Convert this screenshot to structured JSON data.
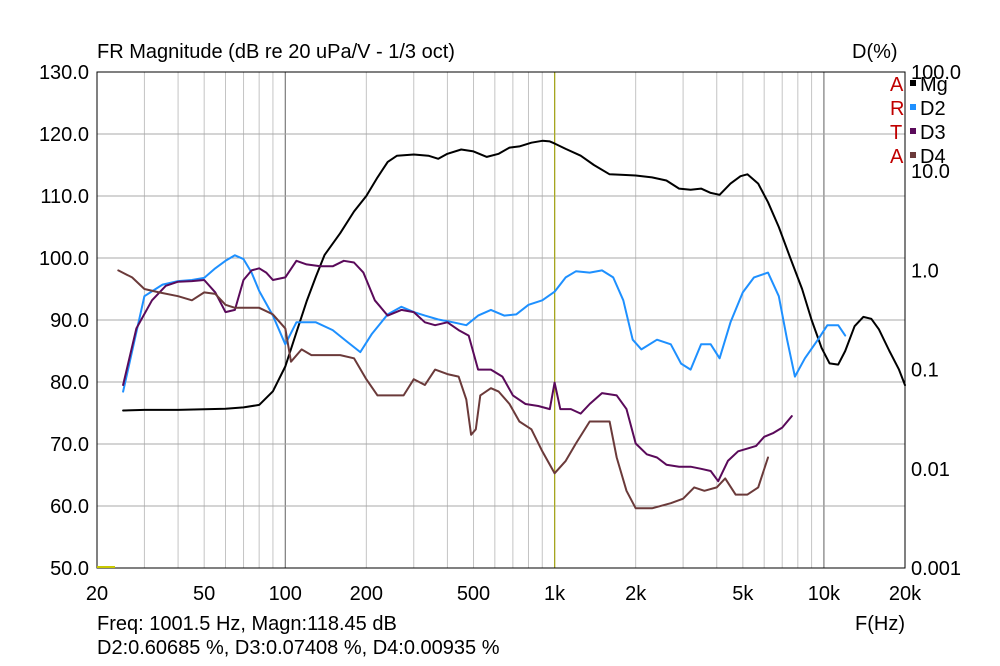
{
  "chart_data": {
    "type": "line",
    "title": "FR Magnitude (dB re 20 uPa/V - 1/3 oct)",
    "right_axis_title": "D(%)",
    "xlabel": "F(Hz)",
    "x_scale": "log",
    "xlim": [
      20,
      20000
    ],
    "x_ticks": [
      {
        "value": 20,
        "label": "20"
      },
      {
        "value": 50,
        "label": "50"
      },
      {
        "value": 100,
        "label": "100"
      },
      {
        "value": 200,
        "label": "200"
      },
      {
        "value": 500,
        "label": "500"
      },
      {
        "value": 1000,
        "label": "1k"
      },
      {
        "value": 2000,
        "label": "2k"
      },
      {
        "value": 5000,
        "label": "5k"
      },
      {
        "value": 10000,
        "label": "10k"
      },
      {
        "value": 20000,
        "label": "20k"
      }
    ],
    "ylim": [
      50,
      130
    ],
    "y_ticks": [
      {
        "value": 50,
        "label": "50.0"
      },
      {
        "value": 60,
        "label": "60.0"
      },
      {
        "value": 70,
        "label": "70.0"
      },
      {
        "value": 80,
        "label": "80.0"
      },
      {
        "value": 90,
        "label": "90.0"
      },
      {
        "value": 100,
        "label": "100.0"
      },
      {
        "value": 110,
        "label": "110.0"
      },
      {
        "value": 120,
        "label": "120.0"
      },
      {
        "value": 130,
        "label": "130.0"
      }
    ],
    "right_axis_scale": "log",
    "right_ylim": [
      0.001,
      100
    ],
    "right_ticks": [
      {
        "value": 100,
        "label": "100.0"
      },
      {
        "value": 10,
        "label": "10.0"
      },
      {
        "value": 1,
        "label": "1.0"
      },
      {
        "value": 0.1,
        "label": "0.1"
      },
      {
        "value": 0.01,
        "label": "0.01"
      },
      {
        "value": 0.001,
        "label": "0.001"
      }
    ],
    "grid": true,
    "cursor_x": 1001.5,
    "legend_position": "top-right",
    "watermark_letters": [
      "A",
      "R",
      "T",
      "A"
    ],
    "series": [
      {
        "name": "Mg",
        "color": "#000000",
        "axis": "left",
        "points": [
          [
            25,
            75.4
          ],
          [
            30,
            75.5
          ],
          [
            40,
            75.5
          ],
          [
            50,
            75.6
          ],
          [
            60,
            75.7
          ],
          [
            70,
            75.9
          ],
          [
            80,
            76.3
          ],
          [
            90,
            78.5
          ],
          [
            100,
            82.5
          ],
          [
            110,
            88
          ],
          [
            120,
            93
          ],
          [
            130,
            97
          ],
          [
            140,
            100.5
          ],
          [
            160,
            104
          ],
          [
            180,
            107.5
          ],
          [
            200,
            110
          ],
          [
            220,
            113
          ],
          [
            240,
            115.5
          ],
          [
            260,
            116.5
          ],
          [
            300,
            116.7
          ],
          [
            340,
            116.5
          ],
          [
            370,
            116
          ],
          [
            400,
            116.8
          ],
          [
            450,
            117.5
          ],
          [
            500,
            117.2
          ],
          [
            560,
            116.3
          ],
          [
            620,
            116.8
          ],
          [
            680,
            117.8
          ],
          [
            740,
            118
          ],
          [
            820,
            118.6
          ],
          [
            900,
            118.9
          ],
          [
            960,
            118.8
          ],
          [
            1001.5,
            118.45
          ],
          [
            1100,
            117.6
          ],
          [
            1250,
            116.5
          ],
          [
            1400,
            115
          ],
          [
            1600,
            113.5
          ],
          [
            1800,
            113.4
          ],
          [
            2000,
            113.3
          ],
          [
            2300,
            113
          ],
          [
            2600,
            112.5
          ],
          [
            2900,
            111.2
          ],
          [
            3200,
            111
          ],
          [
            3500,
            111.2
          ],
          [
            3800,
            110.5
          ],
          [
            4100,
            110.2
          ],
          [
            4500,
            112
          ],
          [
            4900,
            113.2
          ],
          [
            5200,
            113.5
          ],
          [
            5700,
            112
          ],
          [
            6200,
            109
          ],
          [
            6800,
            105
          ],
          [
            7500,
            100
          ],
          [
            8300,
            95
          ],
          [
            9000,
            90
          ],
          [
            9800,
            85.5
          ],
          [
            10500,
            83
          ],
          [
            11300,
            82.8
          ],
          [
            12000,
            85
          ],
          [
            13000,
            89
          ],
          [
            14000,
            90.5
          ],
          [
            15000,
            90.2
          ],
          [
            16000,
            88.5
          ],
          [
            17500,
            85
          ],
          [
            19000,
            82
          ],
          [
            20000,
            79.5
          ]
        ]
      },
      {
        "name": "D2",
        "color": "#1e90ff",
        "axis": "right",
        "points": [
          [
            25,
            0.06
          ],
          [
            30,
            0.55
          ],
          [
            35,
            0.72
          ],
          [
            40,
            0.78
          ],
          [
            45,
            0.8
          ],
          [
            50,
            0.84
          ],
          [
            55,
            1.05
          ],
          [
            60,
            1.25
          ],
          [
            65,
            1.42
          ],
          [
            70,
            1.3
          ],
          [
            75,
            0.95
          ],
          [
            80,
            0.62
          ],
          [
            90,
            0.35
          ],
          [
            100,
            0.18
          ],
          [
            110,
            0.3
          ],
          [
            130,
            0.3
          ],
          [
            150,
            0.25
          ],
          [
            170,
            0.19
          ],
          [
            190,
            0.15
          ],
          [
            210,
            0.23
          ],
          [
            240,
            0.36
          ],
          [
            270,
            0.43
          ],
          [
            300,
            0.38
          ],
          [
            330,
            0.35
          ],
          [
            370,
            0.32
          ],
          [
            420,
            0.3
          ],
          [
            470,
            0.28
          ],
          [
            520,
            0.35
          ],
          [
            580,
            0.4
          ],
          [
            650,
            0.35
          ],
          [
            720,
            0.36
          ],
          [
            800,
            0.45
          ],
          [
            900,
            0.5
          ],
          [
            1000,
            0.61
          ],
          [
            1100,
            0.85
          ],
          [
            1200,
            0.98
          ],
          [
            1350,
            0.95
          ],
          [
            1500,
            1.0
          ],
          [
            1650,
            0.85
          ],
          [
            1800,
            0.5
          ],
          [
            1950,
            0.2
          ],
          [
            2100,
            0.16
          ],
          [
            2400,
            0.2
          ],
          [
            2700,
            0.18
          ],
          [
            2950,
            0.115
          ],
          [
            3200,
            0.1
          ],
          [
            3500,
            0.18
          ],
          [
            3800,
            0.18
          ],
          [
            4100,
            0.13
          ],
          [
            4500,
            0.3
          ],
          [
            5000,
            0.6
          ],
          [
            5500,
            0.85
          ],
          [
            6200,
            0.95
          ],
          [
            6800,
            0.55
          ],
          [
            7300,
            0.2
          ],
          [
            7800,
            0.085
          ],
          [
            8500,
            0.13
          ],
          [
            9500,
            0.2
          ],
          [
            10300,
            0.28
          ],
          [
            11300,
            0.28
          ],
          [
            12000,
            0.22
          ]
        ]
      },
      {
        "name": "D3",
        "color": "#5a0a5a",
        "axis": "right",
        "points": [
          [
            25,
            0.07
          ],
          [
            28,
            0.26
          ],
          [
            32,
            0.5
          ],
          [
            36,
            0.7
          ],
          [
            40,
            0.77
          ],
          [
            45,
            0.78
          ],
          [
            50,
            0.8
          ],
          [
            55,
            0.6
          ],
          [
            60,
            0.38
          ],
          [
            65,
            0.4
          ],
          [
            70,
            0.8
          ],
          [
            75,
            1.0
          ],
          [
            80,
            1.05
          ],
          [
            85,
            0.95
          ],
          [
            90,
            0.8
          ],
          [
            100,
            0.85
          ],
          [
            110,
            1.25
          ],
          [
            120,
            1.15
          ],
          [
            135,
            1.1
          ],
          [
            150,
            1.1
          ],
          [
            165,
            1.25
          ],
          [
            180,
            1.2
          ],
          [
            195,
            0.95
          ],
          [
            215,
            0.5
          ],
          [
            240,
            0.35
          ],
          [
            270,
            0.4
          ],
          [
            300,
            0.38
          ],
          [
            330,
            0.3
          ],
          [
            360,
            0.28
          ],
          [
            400,
            0.3
          ],
          [
            440,
            0.25
          ],
          [
            480,
            0.22
          ],
          [
            520,
            0.1
          ],
          [
            580,
            0.1
          ],
          [
            640,
            0.085
          ],
          [
            700,
            0.055
          ],
          [
            780,
            0.045
          ],
          [
            870,
            0.043
          ],
          [
            960,
            0.04
          ],
          [
            1000,
            0.074
          ],
          [
            1050,
            0.04
          ],
          [
            1150,
            0.04
          ],
          [
            1250,
            0.036
          ],
          [
            1350,
            0.045
          ],
          [
            1500,
            0.058
          ],
          [
            1700,
            0.055
          ],
          [
            1850,
            0.04
          ],
          [
            2000,
            0.018
          ],
          [
            2200,
            0.014
          ],
          [
            2400,
            0.013
          ],
          [
            2600,
            0.011
          ],
          [
            2900,
            0.0105
          ],
          [
            3200,
            0.0105
          ],
          [
            3500,
            0.01
          ],
          [
            3800,
            0.0095
          ],
          [
            4050,
            0.0075
          ],
          [
            4400,
            0.012
          ],
          [
            4800,
            0.015
          ],
          [
            5200,
            0.016
          ],
          [
            5600,
            0.017
          ],
          [
            6000,
            0.021
          ],
          [
            6500,
            0.023
          ],
          [
            7000,
            0.026
          ],
          [
            7600,
            0.034
          ]
        ]
      },
      {
        "name": "D4",
        "color": "#6b3a3a",
        "axis": "right",
        "points": [
          [
            24,
            1.0
          ],
          [
            27,
            0.85
          ],
          [
            30,
            0.65
          ],
          [
            34,
            0.6
          ],
          [
            40,
            0.55
          ],
          [
            45,
            0.5
          ],
          [
            50,
            0.6
          ],
          [
            55,
            0.58
          ],
          [
            60,
            0.45
          ],
          [
            65,
            0.42
          ],
          [
            70,
            0.42
          ],
          [
            80,
            0.42
          ],
          [
            90,
            0.36
          ],
          [
            100,
            0.26
          ],
          [
            105,
            0.12
          ],
          [
            115,
            0.16
          ],
          [
            125,
            0.14
          ],
          [
            140,
            0.14
          ],
          [
            160,
            0.14
          ],
          [
            180,
            0.13
          ],
          [
            200,
            0.08
          ],
          [
            220,
            0.055
          ],
          [
            250,
            0.055
          ],
          [
            275,
            0.055
          ],
          [
            300,
            0.08
          ],
          [
            330,
            0.07
          ],
          [
            360,
            0.1
          ],
          [
            400,
            0.09
          ],
          [
            440,
            0.085
          ],
          [
            470,
            0.05
          ],
          [
            490,
            0.022
          ],
          [
            510,
            0.025
          ],
          [
            530,
            0.055
          ],
          [
            580,
            0.065
          ],
          [
            620,
            0.06
          ],
          [
            680,
            0.045
          ],
          [
            740,
            0.03
          ],
          [
            820,
            0.025
          ],
          [
            900,
            0.015
          ],
          [
            1000,
            0.009
          ],
          [
            1100,
            0.012
          ],
          [
            1200,
            0.018
          ],
          [
            1350,
            0.03
          ],
          [
            1500,
            0.03
          ],
          [
            1600,
            0.03
          ],
          [
            1700,
            0.013
          ],
          [
            1850,
            0.006
          ],
          [
            2000,
            0.004
          ],
          [
            2300,
            0.004
          ],
          [
            2700,
            0.0045
          ],
          [
            3000,
            0.005
          ],
          [
            3300,
            0.0065
          ],
          [
            3600,
            0.006
          ],
          [
            4000,
            0.0065
          ],
          [
            4300,
            0.008
          ],
          [
            4700,
            0.0055
          ],
          [
            5200,
            0.0055
          ],
          [
            5700,
            0.0065
          ],
          [
            6200,
            0.013
          ]
        ]
      }
    ]
  },
  "readout": {
    "line1": "Freq: 1001.5 Hz, Magn:118.45 dB",
    "line2": "D2:0.60685 %, D3:0.07408 %, D4:0.00935 %"
  }
}
